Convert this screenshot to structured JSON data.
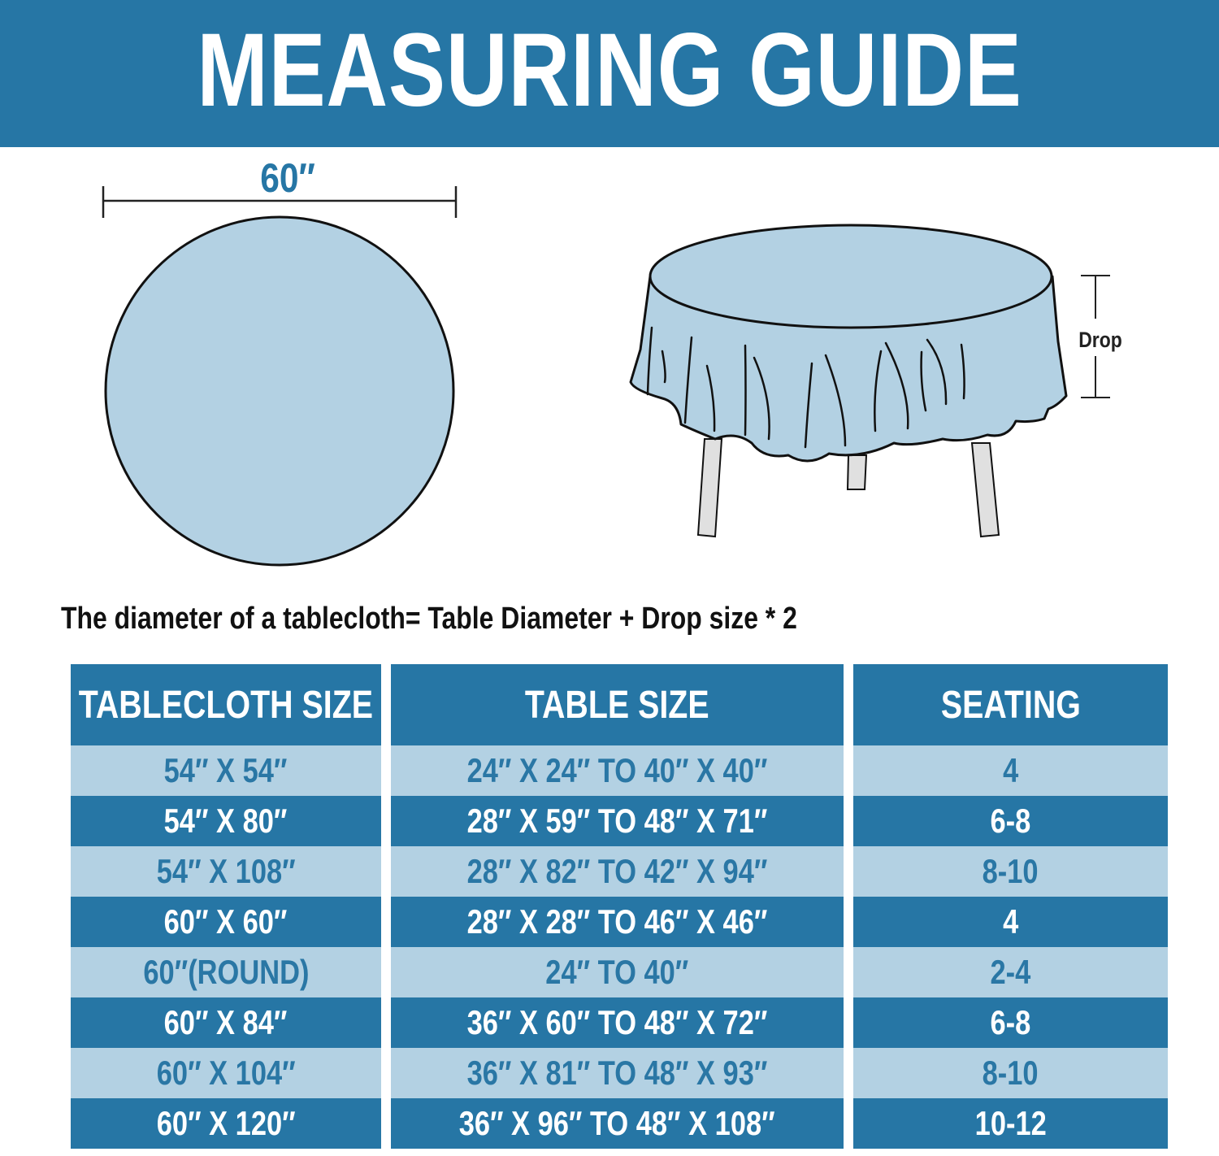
{
  "title": "MEASURING GUIDE",
  "diagram": {
    "diameter_label": "60″",
    "drop_label": "Drop"
  },
  "formula": "The diameter of a tablecloth= Table Diameter + Drop size * 2",
  "table": {
    "headers": [
      "TABLECLOTH SIZE",
      "TABLE SIZE",
      "SEATING"
    ],
    "rows": [
      [
        "54″ X 54″",
        "24″ X 24″ TO 40″ X 40″",
        "4"
      ],
      [
        "54″ X 80″",
        "28″ X 59″ TO 48″ X 71″",
        "6-8"
      ],
      [
        "54″ X 108″",
        "28″ X 82″ TO 42″ X 94″",
        "8-10"
      ],
      [
        "60″ X 60″",
        "28″ X 28″ TO 46″ X 46″",
        "4"
      ],
      [
        "60″(ROUND)",
        "24″ TO 40″",
        "2-4"
      ],
      [
        "60″ X 84″",
        "36″ X 60″ TO 48″ X 72″",
        "6-8"
      ],
      [
        "60″ X 104″",
        "36″ X 81″ TO 48″ X 93″",
        "8-10"
      ],
      [
        "60″ X 120″",
        "36″ X 96″ TO 48″ X 108″",
        "10-12"
      ]
    ]
  },
  "colors": {
    "primary": "#2676a5",
    "light": "#b3d1e3",
    "cloth": "#b3d1e3",
    "leg": "#e0e0e0"
  }
}
